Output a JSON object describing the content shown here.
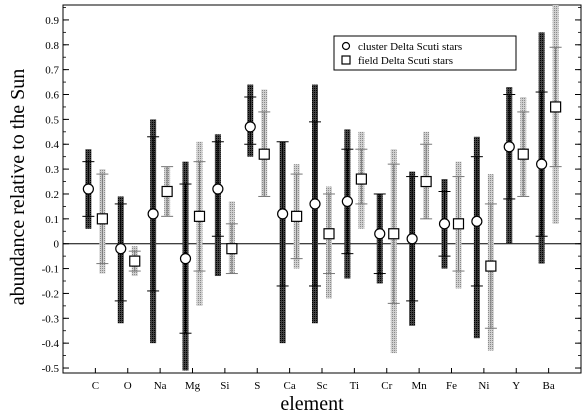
{
  "chart_data": {
    "type": "scatter",
    "xlabel": "element",
    "ylabel": "abundance relative to the Sun",
    "ylim": [
      -0.52,
      0.96
    ],
    "yticks": [
      -0.5,
      -0.4,
      -0.3,
      -0.2,
      -0.1,
      0,
      0.1,
      0.2,
      0.3,
      0.4,
      0.5,
      0.6,
      0.7,
      0.8,
      0.9
    ],
    "yticklabels": [
      "-0.5",
      "-0.4",
      "-0.3",
      "-0.2",
      "-0.1",
      "0",
      "0.1",
      "0.2",
      "0.3",
      "0.4",
      "0.5",
      "0.6",
      "0.7",
      "0.8",
      "0.9"
    ],
    "categories": [
      "C",
      "O",
      "Na",
      "Mg",
      "Si",
      "S",
      "Ca",
      "Sc",
      "Ti",
      "Cr",
      "Mn",
      "Fe",
      "Ni",
      "Y",
      "Ba"
    ],
    "zero_line": true,
    "legend_position": "top-right",
    "series": [
      {
        "name": "cluster Delta Scuti stars",
        "marker": "circle",
        "bar_color": "#111111",
        "points": [
          {
            "y": 0.22,
            "inner": [
              0.11,
              0.33
            ],
            "outer": [
              0.06,
              0.38
            ]
          },
          {
            "y": -0.02,
            "inner": [
              -0.23,
              0.16
            ],
            "outer": [
              -0.32,
              0.19
            ]
          },
          {
            "y": 0.12,
            "inner": [
              -0.19,
              0.43
            ],
            "outer": [
              -0.4,
              0.5
            ]
          },
          {
            "y": -0.06,
            "inner": [
              -0.36,
              0.24
            ],
            "outer": [
              -0.51,
              0.33
            ]
          },
          {
            "y": 0.22,
            "inner": [
              0.03,
              0.41
            ],
            "outer": [
              -0.13,
              0.44
            ]
          },
          {
            "y": 0.47,
            "inner": [
              0.4,
              0.59
            ],
            "outer": [
              0.35,
              0.64
            ]
          },
          {
            "y": 0.12,
            "inner": [
              -0.17,
              0.41
            ],
            "outer": [
              -0.4,
              0.41
            ]
          },
          {
            "y": 0.16,
            "inner": [
              -0.17,
              0.49
            ],
            "outer": [
              -0.32,
              0.64
            ]
          },
          {
            "y": 0.17,
            "inner": [
              -0.04,
              0.38
            ],
            "outer": [
              -0.14,
              0.46
            ]
          },
          {
            "y": 0.04,
            "inner": [
              -0.12,
              0.2
            ],
            "outer": [
              -0.16,
              0.2
            ]
          },
          {
            "y": 0.02,
            "inner": [
              -0.23,
              0.27
            ],
            "outer": [
              -0.33,
              0.29
            ]
          },
          {
            "y": 0.08,
            "inner": [
              -0.05,
              0.21
            ],
            "outer": [
              -0.1,
              0.26
            ]
          },
          {
            "y": 0.09,
            "inner": [
              -0.17,
              0.35
            ],
            "outer": [
              -0.38,
              0.43
            ]
          },
          {
            "y": 0.39,
            "inner": [
              0.18,
              0.6
            ],
            "outer": [
              0.0,
              0.63
            ]
          },
          {
            "y": 0.32,
            "inner": [
              0.03,
              0.61
            ],
            "outer": [
              -0.08,
              0.85
            ]
          }
        ]
      },
      {
        "name": "field Delta Scuti stars",
        "marker": "square",
        "bar_color": "#9a9a9a",
        "points": [
          {
            "y": 0.1,
            "inner": [
              -0.08,
              0.28
            ],
            "outer": [
              -0.12,
              0.3
            ]
          },
          {
            "y": -0.07,
            "inner": [
              -0.11,
              -0.03
            ],
            "outer": [
              -0.13,
              -0.01
            ]
          },
          {
            "y": 0.21,
            "inner": [
              0.11,
              0.31
            ],
            "outer": [
              0.11,
              0.31
            ]
          },
          {
            "y": 0.11,
            "inner": [
              -0.11,
              0.33
            ],
            "outer": [
              -0.25,
              0.41
            ]
          },
          {
            "y": -0.02,
            "inner": [
              -0.12,
              0.08
            ],
            "outer": [
              -0.12,
              0.17
            ]
          },
          {
            "y": 0.36,
            "inner": [
              0.19,
              0.53
            ],
            "outer": [
              0.19,
              0.62
            ]
          },
          {
            "y": 0.11,
            "inner": [
              -0.06,
              0.28
            ],
            "outer": [
              -0.1,
              0.32
            ]
          },
          {
            "y": 0.04,
            "inner": [
              -0.12,
              0.2
            ],
            "outer": [
              -0.22,
              0.23
            ]
          },
          {
            "y": 0.26,
            "inner": [
              0.16,
              0.38
            ],
            "outer": [
              0.06,
              0.45
            ]
          },
          {
            "y": 0.04,
            "inner": [
              -0.24,
              0.32
            ],
            "outer": [
              -0.44,
              0.38
            ]
          },
          {
            "y": 0.25,
            "inner": [
              0.1,
              0.4
            ],
            "outer": [
              0.1,
              0.45
            ]
          },
          {
            "y": 0.08,
            "inner": [
              -0.11,
              0.27
            ],
            "outer": [
              -0.18,
              0.33
            ]
          },
          {
            "y": -0.09,
            "inner": [
              -0.34,
              0.16
            ],
            "outer": [
              -0.43,
              0.28
            ]
          },
          {
            "y": 0.36,
            "inner": [
              0.19,
              0.53
            ],
            "outer": [
              0.19,
              0.59
            ]
          },
          {
            "y": 0.55,
            "inner": [
              0.31,
              0.79
            ],
            "outer": [
              0.08,
              0.96
            ]
          }
        ]
      }
    ]
  }
}
